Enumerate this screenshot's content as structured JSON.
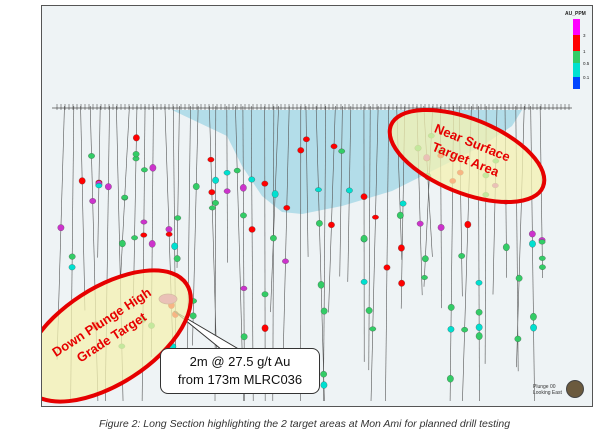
{
  "legend": {
    "title": "AU_PPM",
    "ticks": [
      "3",
      "1",
      "0.5",
      "0.1"
    ],
    "colors": [
      "#ff00ff",
      "#ff0000",
      "#33cc66",
      "#00e0d0",
      "#0044ff"
    ]
  },
  "targets": [
    {
      "label": "Near Surface Target Area",
      "color": "#e60000",
      "fill": "#f4f2b0"
    },
    {
      "label": "Down Plunge High Grade Target",
      "color": "#e60000",
      "fill": "#f4f2b0"
    }
  ],
  "callout": {
    "line1": "2m @ 27.5 g/t Au",
    "line2": "from 173m MLRC036"
  },
  "plunge": {
    "line1": "Plunge 00",
    "line2": "Looking East"
  },
  "caption": "Figure 2: Long Section highlighting the 2 target areas at Mon Ami for planned drill testing",
  "colors": {
    "pit_shell": "#a8d8e6",
    "background": "#eef3f5",
    "target_outline": "#e60000",
    "high_grade": "#cc33cc"
  },
  "icons": {
    "compass": "compass-icon"
  }
}
